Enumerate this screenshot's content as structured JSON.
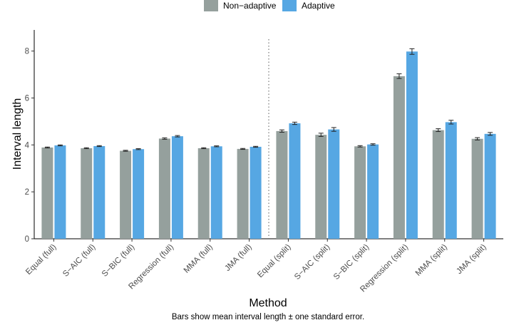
{
  "chart_data": {
    "type": "bar",
    "xlabel": "Method",
    "ylabel": "Interval length",
    "caption": "Bars show mean interval length ± one standard error.",
    "ylim": [
      0,
      8.9
    ],
    "yticks": [
      0,
      2,
      4,
      6,
      8
    ],
    "legend_position": "top",
    "divider_after_category": 6,
    "categories": [
      "Equal (full)",
      "S−AIC (full)",
      "S−BIC (full)",
      "Regression (full)",
      "MMA (full)",
      "JMA (full)",
      "Equal (split)",
      "S−AIC (split)",
      "S−BIC (split)",
      "Regression (split)",
      "MMA (split)",
      "JMA (split)"
    ],
    "series": [
      {
        "name": "Non−adaptive",
        "color": "#95a09d",
        "values": [
          3.89,
          3.86,
          3.75,
          4.27,
          3.86,
          3.83,
          4.59,
          4.43,
          3.94,
          6.93,
          4.63,
          4.26
        ],
        "errors": [
          0.02,
          0.02,
          0.02,
          0.03,
          0.02,
          0.02,
          0.05,
          0.07,
          0.03,
          0.1,
          0.06,
          0.05
        ]
      },
      {
        "name": "Adaptive",
        "color": "#56a7e3",
        "values": [
          3.98,
          3.95,
          3.82,
          4.37,
          3.94,
          3.92,
          4.92,
          4.66,
          4.02,
          7.98,
          4.97,
          4.47
        ],
        "errors": [
          0.02,
          0.02,
          0.02,
          0.03,
          0.02,
          0.02,
          0.05,
          0.08,
          0.03,
          0.12,
          0.08,
          0.06
        ]
      }
    ]
  }
}
